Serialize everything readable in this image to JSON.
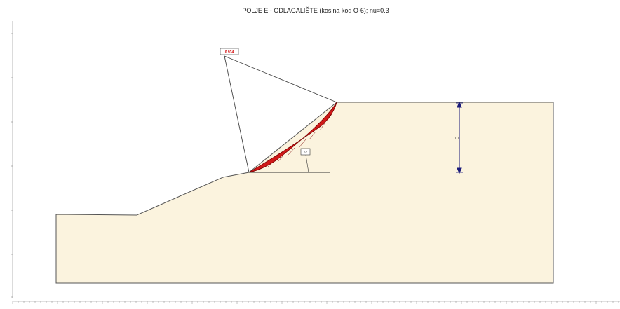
{
  "title": "POLJE E - ODLAGALIŠTE (kosina kod O-6); nu=0.3",
  "factor_of_safety_label": "0.934",
  "slice_label": "57",
  "dimension_label": "10",
  "colors": {
    "soil_fill": "#fbf3de",
    "outline": "#555555",
    "slip_fill": "#d01818",
    "dimension": "#1a1a7a",
    "label_red": "#d00000"
  }
}
